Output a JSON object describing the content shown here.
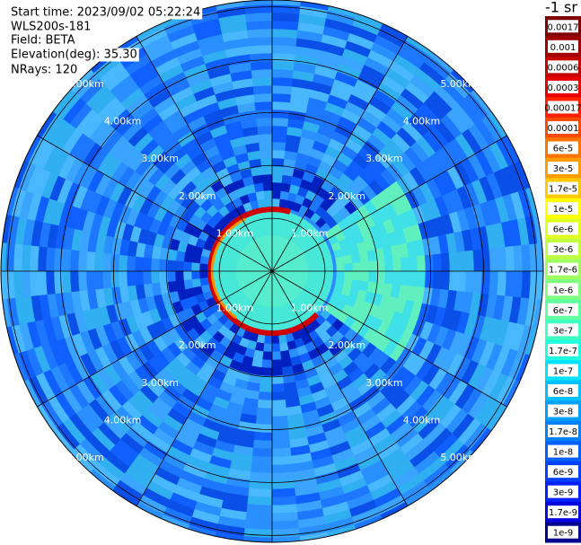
{
  "chart_data": {
    "type": "ppi",
    "header": [
      "Start time: 2023/09/02 05:22:24",
      "WLS200s-181",
      "Field: BETA",
      "Elevation(deg): 35.30",
      "NRays: 120"
    ],
    "rlim": [
      0,
      5.13
    ],
    "rticks": [
      {
        "value": 1,
        "label": "1.00km"
      },
      {
        "value": 2,
        "label": "2.00km"
      },
      {
        "value": 3,
        "label": "3.00km"
      },
      {
        "value": 4,
        "label": "4.00km"
      },
      {
        "value": 5,
        "label": "5.00km"
      }
    ],
    "colorbar": {
      "label": "-1 sr",
      "levels": [
        {
          "label": "0.0017",
          "color": "#800000"
        },
        {
          "label": "0.001",
          "color": "#a00000"
        },
        {
          "label": "0.0006",
          "color": "#c40000"
        },
        {
          "label": "0.0003",
          "color": "#e80000"
        },
        {
          "label": "0.00017",
          "color": "#ff2000"
        },
        {
          "label": "0.0001",
          "color": "#ff4a00"
        },
        {
          "label": "6e-5",
          "color": "#ff7400"
        },
        {
          "label": "3e-5",
          "color": "#ff9c00"
        },
        {
          "label": "1.7e-5",
          "color": "#ffc800"
        },
        {
          "label": "1e-5",
          "color": "#ffff00"
        },
        {
          "label": "6e-6",
          "color": "#e0ff20"
        },
        {
          "label": "3e-6",
          "color": "#c0ff40"
        },
        {
          "label": "1.7e-6",
          "color": "#a0ff60"
        },
        {
          "label": "1e-6",
          "color": "#80ff80"
        },
        {
          "label": "6e-7",
          "color": "#60ffa0"
        },
        {
          "label": "3e-7",
          "color": "#40ffc0"
        },
        {
          "label": "1.7e-7",
          "color": "#20ffe0"
        },
        {
          "label": "1e-7",
          "color": "#00e0ff"
        },
        {
          "label": "6e-8",
          "color": "#00c0ff"
        },
        {
          "label": "3e-8",
          "color": "#00a0ff"
        },
        {
          "label": "1.7e-8",
          "color": "#0080ff"
        },
        {
          "label": "1e-8",
          "color": "#0060ff"
        },
        {
          "label": "6e-9",
          "color": "#0040ff"
        },
        {
          "label": "3e-9",
          "color": "#0020ff"
        },
        {
          "label": "1.7e-9",
          "color": "#0000e0"
        },
        {
          "label": "1e-9",
          "color": "#000090"
        }
      ]
    }
  }
}
